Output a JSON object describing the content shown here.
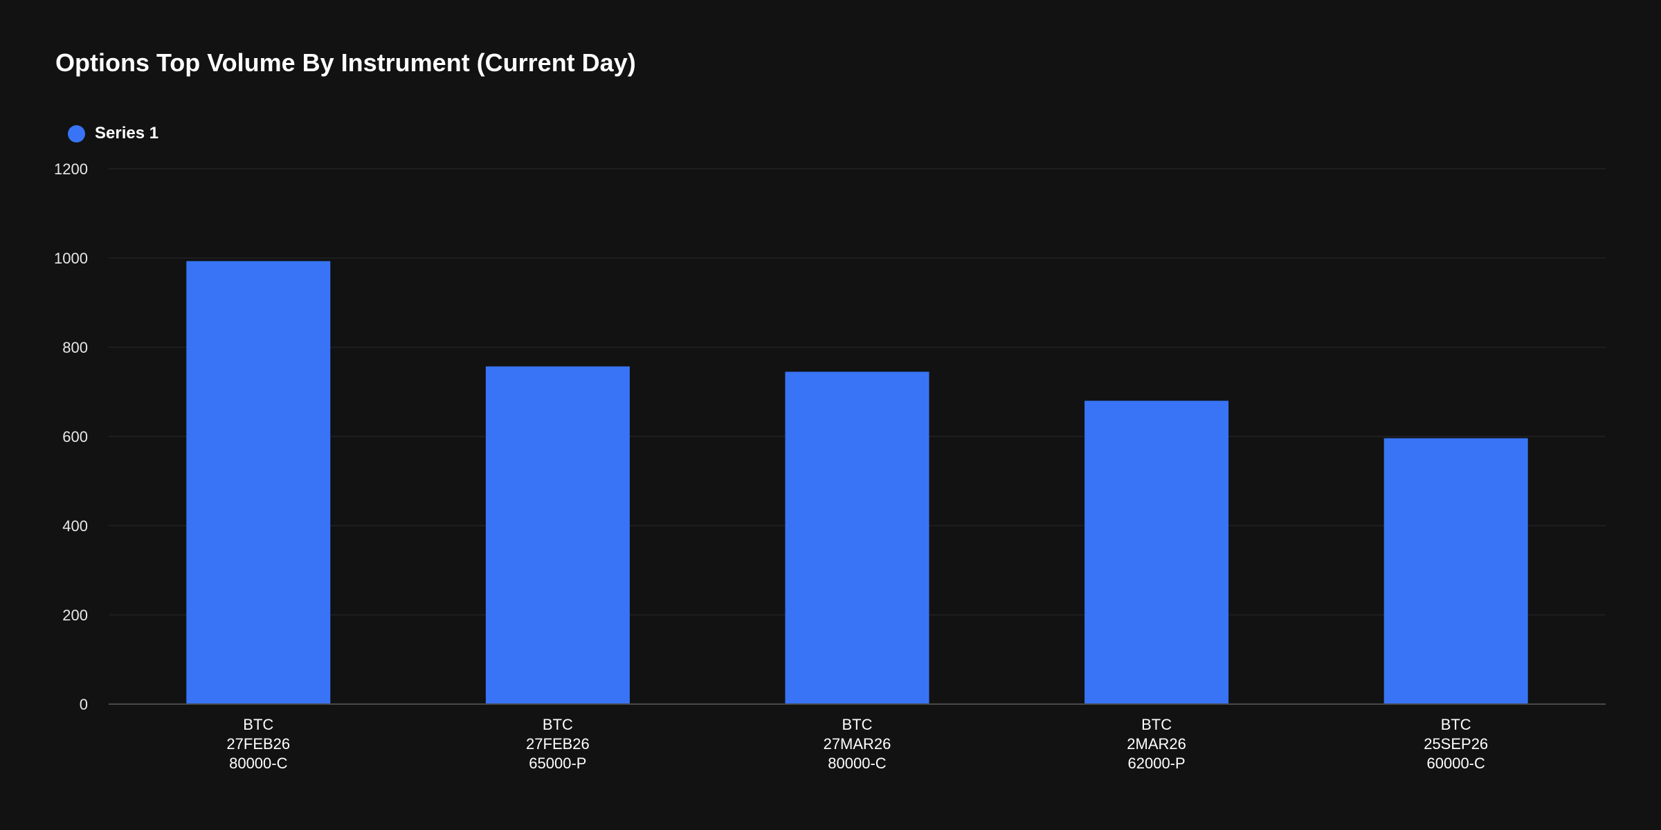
{
  "chart_data": {
    "type": "bar",
    "title": "Options Top Volume By Instrument (Current Day)",
    "xlabel": "",
    "ylabel": "",
    "ylim": [
      0,
      1200
    ],
    "yticks": [
      0,
      200,
      400,
      600,
      800,
      1000,
      1200
    ],
    "grid": true,
    "legend_position": "top-left",
    "categories": [
      [
        "BTC",
        "27FEB26",
        "80000-C"
      ],
      [
        "BTC",
        "27FEB26",
        "65000-P"
      ],
      [
        "BTC",
        "27MAR26",
        "80000-C"
      ],
      [
        "BTC",
        "2MAR26",
        "62000-P"
      ],
      [
        "BTC",
        "25SEP26",
        "60000-C"
      ]
    ],
    "series": [
      {
        "name": "Series 1",
        "color": "#3874f5",
        "values": [
          993,
          757,
          745,
          680,
          596
        ]
      }
    ]
  },
  "colors": {
    "background": "#121213",
    "gridline": "#222224",
    "axis": "#4a4a4c"
  }
}
